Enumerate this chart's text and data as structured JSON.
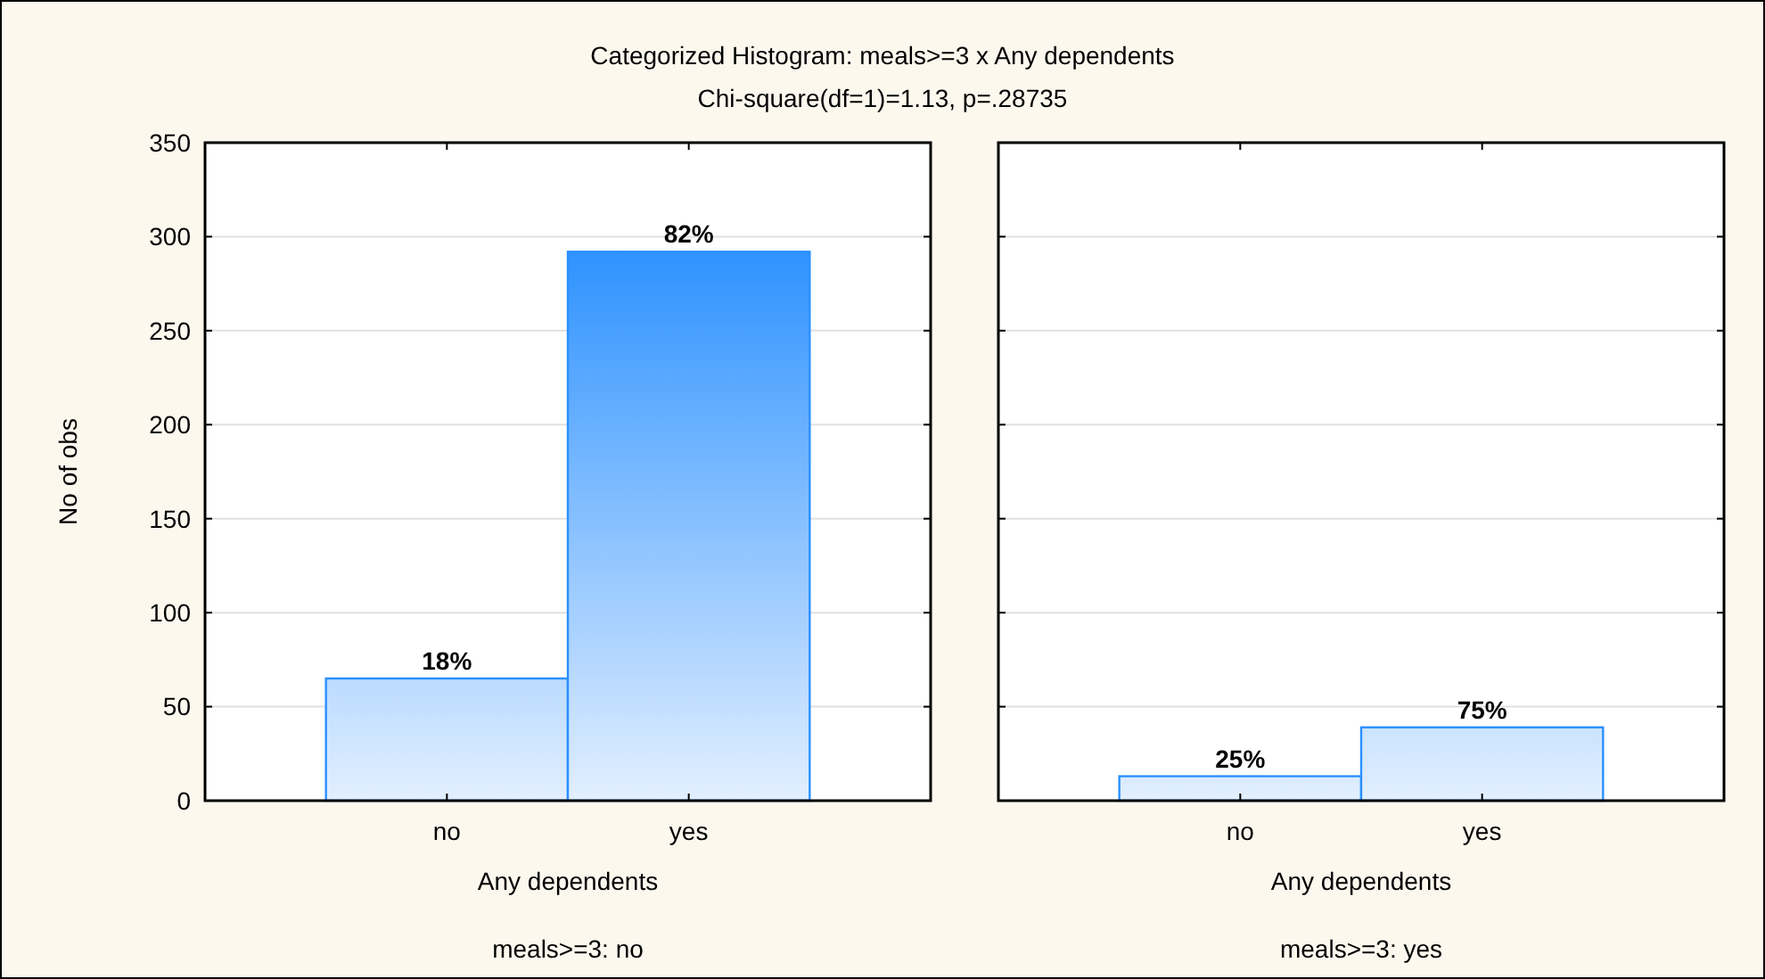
{
  "chart_data": [
    {
      "type": "bar",
      "title": "Categorized Histogram: meals>=3 x Any dependents",
      "subtitle": "Chi-square(df=1)=1.13, p=.28735",
      "categories": [
        "no",
        "yes"
      ],
      "values": [
        65,
        292
      ],
      "color": "#2a90ff",
      "xlabel": "Any dependents",
      "ylabel": "No of obs",
      "annotations": [
        "meals>=3: no",
        {
          "text": "18%",
          "x": "no",
          "y": 65
        },
        {
          "text": "82%",
          "x": "yes",
          "y": 292
        }
      ],
      "ylim": [
        0,
        350
      ],
      "yticks": [
        0,
        50,
        100,
        150,
        200,
        250,
        300,
        350
      ],
      "grid": "y"
    },
    {
      "type": "bar",
      "categories": [
        "no",
        "yes"
      ],
      "values": [
        13,
        39
      ],
      "color": "#2a90ff",
      "xlabel": "Any dependents",
      "annotations": [
        "meals>=3: yes",
        {
          "text": "25%",
          "x": "no",
          "y": 13
        },
        {
          "text": "75%",
          "x": "yes",
          "y": 39
        }
      ],
      "ylim": [
        0,
        350
      ],
      "yticks": [
        0,
        50,
        100,
        150,
        200,
        250,
        300,
        350
      ],
      "grid": "y",
      "tick_labels": "x"
    }
  ]
}
